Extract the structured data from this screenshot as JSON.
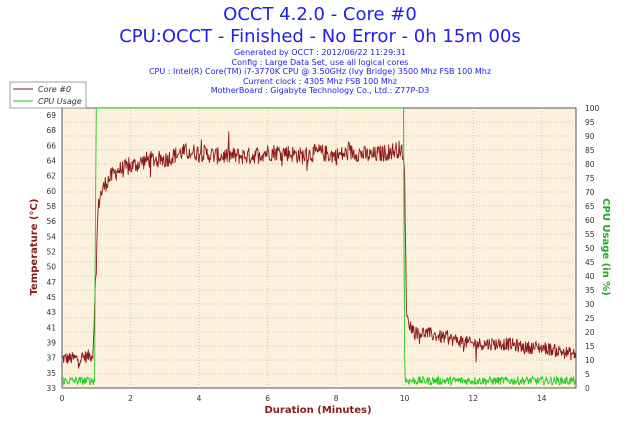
{
  "chart_data": {
    "type": "line",
    "title": "OCCT 4.2.0 - Core #0",
    "subtitle": "CPU:OCCT - Finished - No Error - 0h 15m 00s",
    "info_lines": [
      "Generated by OCCT : 2012/06/22 11:29:31",
      "Config : Large Data Set, use all logical cores",
      "CPU : Intel(R) Core(TM) i7-3770K CPU @ 3.50GHz (Ivy Bridge) 3500 Mhz FSB 100 Mhz",
      "Current clock : 4305 Mhz FSB 100 Mhz",
      "MotherBoard : Gigabyte Technology Co., Ltd.: Z77P-D3"
    ],
    "xlabel": "Duration (Minutes)",
    "ylabel_left": "Temperature (°C)",
    "ylabel_right": "CPU Usage (in %)",
    "xlim": [
      0,
      15
    ],
    "ylim_left": [
      33,
      71
    ],
    "ylim_right": [
      0,
      100
    ],
    "x_ticks": [
      "0",
      "2",
      "4",
      "6",
      "8",
      "10",
      "12",
      "14"
    ],
    "y_left_ticks": [
      "33",
      "35",
      "37",
      "39",
      "41",
      "43",
      "45",
      "47",
      "50",
      "52",
      "54",
      "56",
      "58",
      "60",
      "62",
      "64",
      "66",
      "68",
      "69"
    ],
    "y_right_ticks": [
      "0",
      "5",
      "10",
      "15",
      "20",
      "25",
      "30",
      "35",
      "40",
      "45",
      "50",
      "55",
      "60",
      "65",
      "70",
      "75",
      "80",
      "85",
      "90",
      "95",
      "100"
    ],
    "legend": [
      "Core #0",
      "CPU Usage"
    ],
    "legend_position": "top-left",
    "grid": true,
    "series": [
      {
        "name": "Core #0",
        "axis": "left",
        "color": "#8b1a1a",
        "x": [
          0,
          0.5,
          0.9,
          1.0,
          1.05,
          1.1,
          1.3,
          1.6,
          2.0,
          2.5,
          3.0,
          3.5,
          4.0,
          4.5,
          5.0,
          5.5,
          6.0,
          6.5,
          7.0,
          7.5,
          8.0,
          8.5,
          9.0,
          9.5,
          9.9,
          10.0,
          10.05,
          10.1,
          10.3,
          10.6,
          11.0,
          11.5,
          12.0,
          12.5,
          13.0,
          13.5,
          14.0,
          14.5,
          15.0
        ],
        "y": [
          37,
          37,
          37.5,
          50,
          57,
          59,
          61,
          62.5,
          63,
          64,
          64,
          65,
          65,
          64.5,
          64.5,
          64.5,
          65,
          65,
          64.5,
          65,
          64.5,
          65,
          64.5,
          65,
          65.5,
          62,
          44,
          42,
          40.5,
          40.5,
          40,
          39.5,
          39,
          39,
          39,
          38.5,
          38.5,
          38,
          37.5
        ]
      },
      {
        "name": "CPU Usage",
        "axis": "right",
        "color": "#22cc22",
        "x": [
          0,
          0.95,
          0.97,
          1.0,
          1.02,
          5.0,
          9.97,
          9.98,
          10.0,
          10.02,
          15.0
        ],
        "y": [
          2,
          2,
          50,
          100,
          100,
          100,
          100,
          50,
          10,
          2,
          2
        ]
      }
    ]
  }
}
